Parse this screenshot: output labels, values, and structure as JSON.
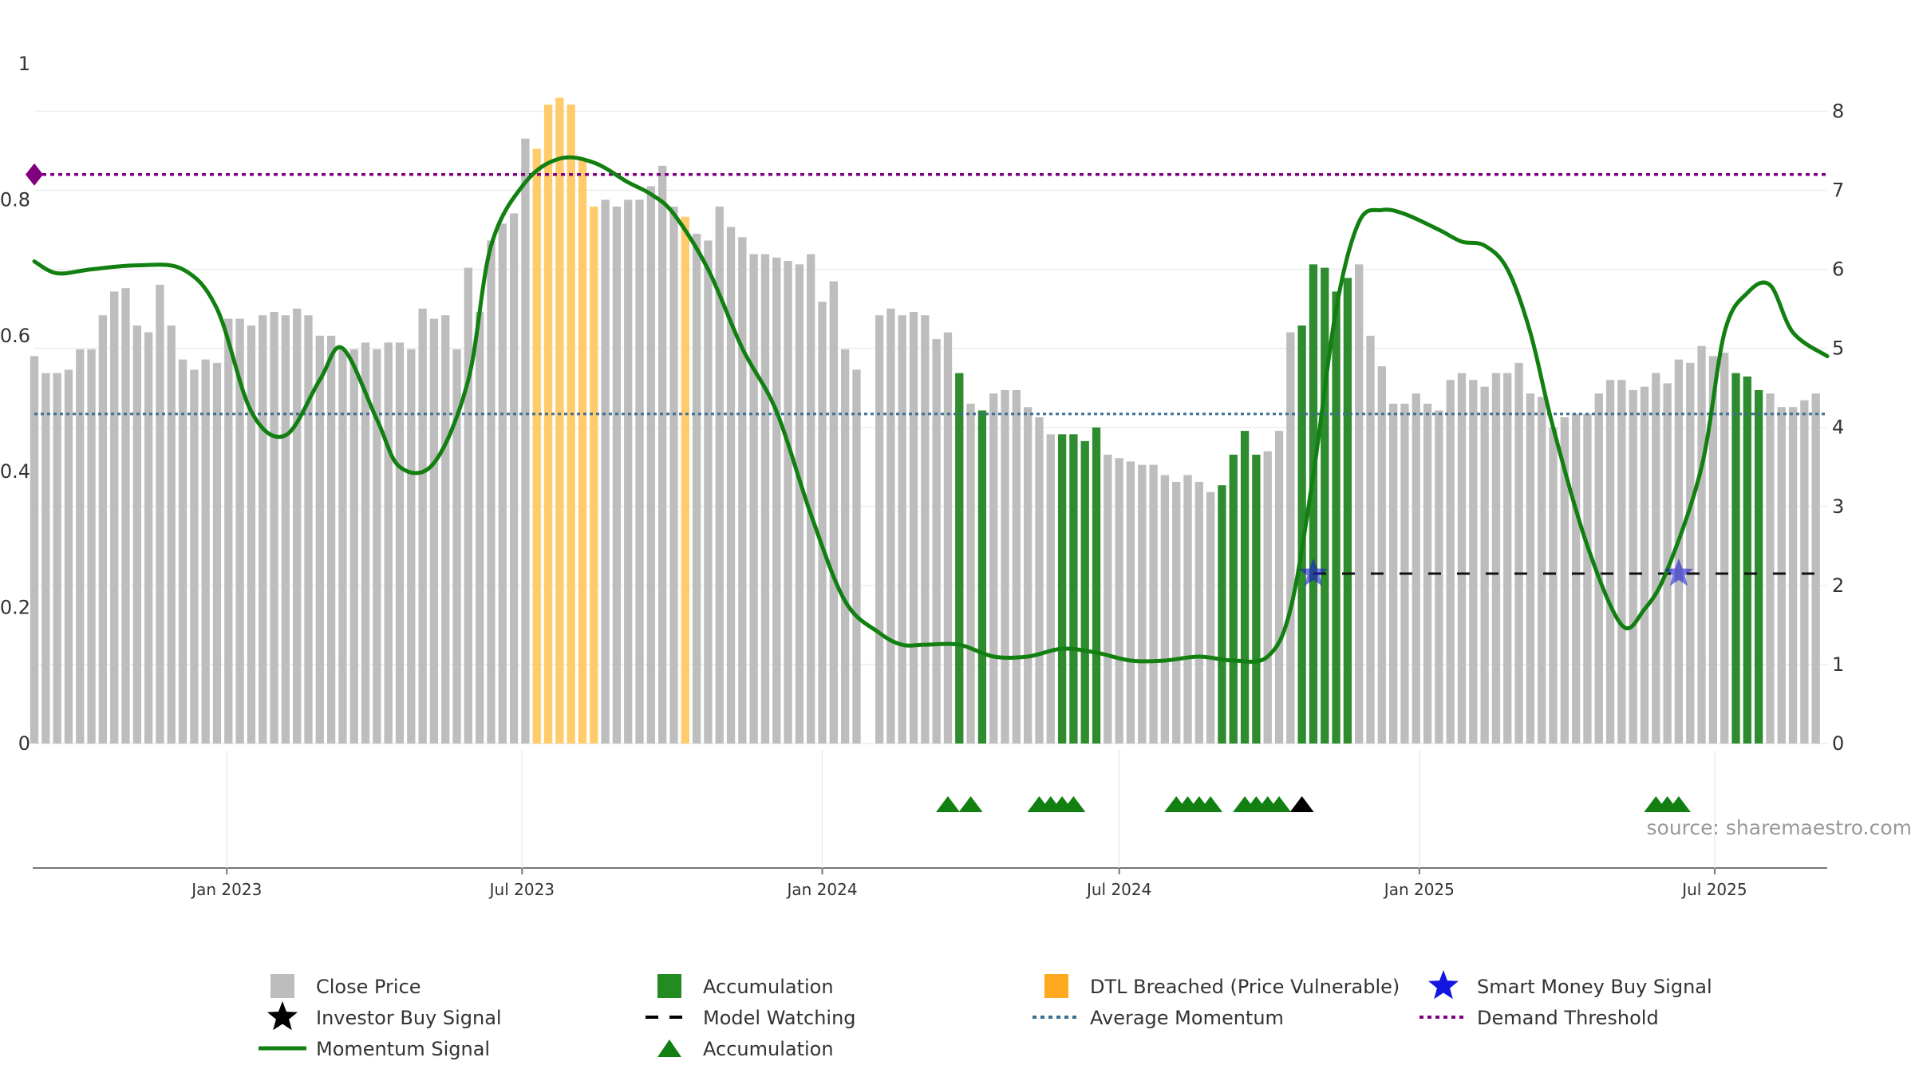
{
  "chart_data": {
    "type": "bar",
    "x_start": "2022-09-05",
    "x_end": "2025-09-08",
    "x_axis_ticks": [
      "Jan 2023",
      "Jul 2023",
      "Jan 2024",
      "Jul 2024",
      "Jan 2025",
      "Jul 2025"
    ],
    "left_axis_ticks": [
      "0",
      "0.2",
      "0.4",
      "0.6",
      "0.8",
      "1"
    ],
    "right_axis_ticks": [
      "0",
      "1",
      "2",
      "3",
      "4",
      "5",
      "6",
      "7",
      "8"
    ],
    "left_ylim": [
      0,
      1
    ],
    "right_ylim": [
      0,
      8.6
    ],
    "grid": "horizontal",
    "bar_status_codes": {
      "C": "Close Price",
      "A": "Accumulation",
      "D": "DTL Breached (Price Vulnerable)"
    },
    "weekly_bars": {
      "values": [
        0.57,
        0.545,
        0.545,
        0.55,
        0.58,
        0.58,
        0.63,
        0.665,
        0.67,
        0.615,
        0.605,
        0.675,
        0.615,
        0.565,
        0.55,
        0.565,
        0.56,
        0.625,
        0.625,
        0.615,
        0.63,
        0.635,
        0.63,
        0.64,
        0.63,
        0.6,
        0.6,
        0.58,
        0.58,
        0.59,
        0.58,
        0.59,
        0.59,
        0.58,
        0.64,
        0.625,
        0.63,
        0.58,
        0.7,
        0.635,
        0.74,
        0.765,
        0.78,
        0.89,
        0.875,
        0.94,
        0.95,
        0.94,
        0.86,
        0.79,
        0.8,
        0.79,
        0.8,
        0.8,
        0.82,
        0.85,
        0.79,
        0.775,
        0.75,
        0.74,
        0.79,
        0.76,
        0.745,
        0.72,
        0.72,
        0.715,
        0.71,
        0.705,
        0.72,
        0.65,
        0.68,
        0.58,
        0.55,
        null,
        0.63,
        0.64,
        0.63,
        0.635,
        0.63,
        0.595,
        0.605,
        0.545,
        0.5,
        0.49,
        0.515,
        0.52,
        0.52,
        0.495,
        0.48,
        0.455,
        0.455,
        0.455,
        0.445,
        0.465,
        0.425,
        0.42,
        0.415,
        0.41,
        0.41,
        0.395,
        0.385,
        0.395,
        0.385,
        0.37,
        0.38,
        0.425,
        0.46,
        0.425,
        0.43,
        0.46,
        0.605,
        0.615,
        0.705,
        0.7,
        0.665,
        0.685,
        0.705,
        0.6,
        0.555,
        0.5,
        0.5,
        0.515,
        0.5,
        0.49,
        0.535,
        0.545,
        0.535,
        0.525,
        0.545,
        0.545,
        0.56,
        0.515,
        0.51,
        0.465,
        0.48,
        0.485,
        0.485,
        0.515,
        0.535,
        0.535,
        0.52,
        0.525,
        0.545,
        0.53,
        0.565,
        0.56,
        0.585,
        0.57,
        0.575,
        0.545,
        0.54,
        0.52,
        0.515,
        0.495,
        0.495,
        0.505,
        0.515
      ],
      "status": "CCCCCCCCCCCCCCCCCCCCCCCCCCCCCCCCCCCCCCCCCCCCDDDDDDCCCCCCCDCCCCCCCCCCCCCCCCCCCCCCCACACCCCCCAAAACCCCCCCCCCAAAACCCAAAAACCCCCCCCCCCCCCCCCCCCCCCCCCCCCCCCCAAACCCCCCCCCCCCCCCCC"
    },
    "momentum_signal": {
      "x": [
        "2022-09-05",
        "2022-09-19",
        "2022-10-10",
        "2022-11-07",
        "2022-12-05",
        "2022-12-26",
        "2023-01-16",
        "2023-02-06",
        "2023-02-27",
        "2023-03-13",
        "2023-04-03",
        "2023-04-17",
        "2023-05-08",
        "2023-05-29",
        "2023-06-12",
        "2023-07-03",
        "2023-07-24",
        "2023-08-14",
        "2023-09-04",
        "2023-09-18",
        "2023-10-02",
        "2023-10-23",
        "2023-11-13",
        "2023-12-04",
        "2023-12-25",
        "2024-01-15",
        "2024-02-05",
        "2024-02-19",
        "2024-03-04",
        "2024-03-25",
        "2024-04-15",
        "2024-05-06",
        "2024-05-27",
        "2024-06-17",
        "2024-07-08",
        "2024-07-29",
        "2024-08-19",
        "2024-09-09",
        "2024-09-30",
        "2024-10-14",
        "2024-10-28",
        "2024-11-11",
        "2024-11-25",
        "2024-12-09",
        "2024-12-23",
        "2025-01-13",
        "2025-01-27",
        "2025-02-10",
        "2025-02-24",
        "2025-03-10",
        "2025-03-24",
        "2025-04-14",
        "2025-05-05",
        "2025-05-19",
        "2025-06-02",
        "2025-06-23",
        "2025-07-07",
        "2025-07-21",
        "2025-08-04",
        "2025-08-18",
        "2025-09-08"
      ],
      "y": [
        6.1,
        5.95,
        6.0,
        6.05,
        6.0,
        5.5,
        4.2,
        3.9,
        4.6,
        5.0,
        4.1,
        3.5,
        3.55,
        4.6,
        6.3,
        7.1,
        7.4,
        7.35,
        7.1,
        6.95,
        6.7,
        6.0,
        5.0,
        4.2,
        2.9,
        1.8,
        1.4,
        1.25,
        1.25,
        1.25,
        1.1,
        1.1,
        1.2,
        1.15,
        1.05,
        1.05,
        1.1,
        1.05,
        1.1,
        1.7,
        3.4,
        5.5,
        6.6,
        6.75,
        6.7,
        6.5,
        6.35,
        6.3,
        6.0,
        5.2,
        4.0,
        2.5,
        1.5,
        1.7,
        2.2,
        3.5,
        5.2,
        5.7,
        5.8,
        5.2,
        4.9
      ]
    },
    "demand_threshold": 7.2,
    "average_momentum": 4.17,
    "model_watching": {
      "x_from": "2024-10-28",
      "x_to": "2025-09-08",
      "y": 2.15
    },
    "smart_money_buy_signals": [
      {
        "x": "2024-10-28",
        "y": 2.15
      },
      {
        "x": "2025-06-09",
        "y": 2.15
      }
    ],
    "accumulation_markers": [
      "2024-03-18",
      "2024-04-01",
      "2024-05-13",
      "2024-05-20",
      "2024-05-27",
      "2024-06-03",
      "2024-08-05",
      "2024-08-12",
      "2024-08-19",
      "2024-08-26",
      "2024-09-16",
      "2024-09-23",
      "2024-09-30",
      "2024-10-07",
      "2025-05-26",
      "2025-06-02",
      "2025-06-09"
    ],
    "investor_buy_signals": [
      "2024-10-21"
    ],
    "legend": [
      {
        "label": "Close Price",
        "symbol": "square",
        "color": "#bdbdbd"
      },
      {
        "label": "Accumulation",
        "symbol": "square",
        "color": "#228b22"
      },
      {
        "label": "DTL Breached (Price Vulnerable)",
        "symbol": "square",
        "color": "#ffa91f"
      },
      {
        "label": "Smart Money Buy Signal",
        "symbol": "star",
        "color": "#1515e0"
      },
      {
        "label": "Investor Buy Signal",
        "symbol": "star",
        "color": "#000000"
      },
      {
        "label": "Model Watching",
        "symbol": "dash",
        "color": "#000000"
      },
      {
        "label": "Average Momentum",
        "symbol": "dot",
        "color": "#3b6f93"
      },
      {
        "label": "Demand Threshold",
        "symbol": "dot",
        "color": "#800080"
      },
      {
        "label": "Momentum Signal",
        "symbol": "line",
        "color": "#118011"
      },
      {
        "label": "Accumulation",
        "symbol": "triangle",
        "color": "#118011"
      }
    ],
    "colors": {
      "close": "#bdbdbd",
      "accumulation": "#2e8b2e",
      "dtl": "#ffcb6b",
      "momentum": "#118011",
      "average": "#3b6f93",
      "threshold": "#800080",
      "watch": "#111111",
      "smart": "#1c1cd0",
      "marker": "#118011"
    }
  },
  "source": "source: sharemaestro.com"
}
